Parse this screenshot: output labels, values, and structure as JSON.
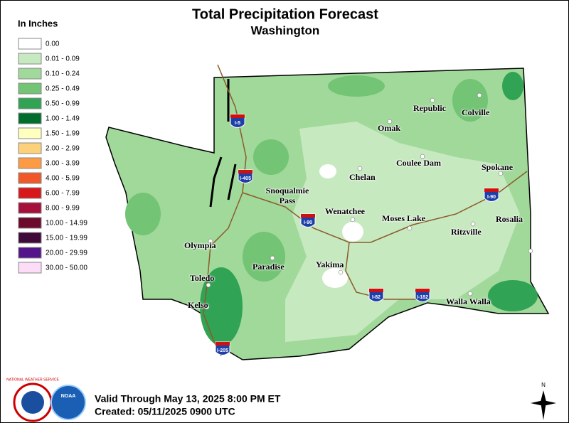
{
  "header": {
    "title": "Total Precipitation Forecast",
    "subtitle": "Washington"
  },
  "legend": {
    "title": "In Inches",
    "items": [
      {
        "label": "0.00",
        "color": "#ffffff"
      },
      {
        "label": "0.01 - 0.09",
        "color": "#c7e9c0"
      },
      {
        "label": "0.10 - 0.24",
        "color": "#a1d99b"
      },
      {
        "label": "0.25 - 0.49",
        "color": "#74c476"
      },
      {
        "label": "0.50 - 0.99",
        "color": "#31a354"
      },
      {
        "label": "1.00 - 1.49",
        "color": "#006d2c"
      },
      {
        "label": "1.50 - 1.99",
        "color": "#ffffc0"
      },
      {
        "label": "2.00 - 2.99",
        "color": "#fdd07a"
      },
      {
        "label": "3.00 - 3.99",
        "color": "#fd9a44"
      },
      {
        "label": "4.00 - 5.99",
        "color": "#f0582a"
      },
      {
        "label": "6.00 - 7.99",
        "color": "#d7191c"
      },
      {
        "label": "8.00 - 9.99",
        "color": "#a50f3a"
      },
      {
        "label": "10.00 - 14.99",
        "color": "#6b0a2a"
      },
      {
        "label": "15.00 - 19.99",
        "color": "#3f0a3a"
      },
      {
        "label": "20.00 - 29.99",
        "color": "#54158a"
      },
      {
        "label": "30.00 - 50.00",
        "color": "#fcdcf7"
      }
    ]
  },
  "cities": [
    "Republic",
    "Colville",
    "Omak",
    "Chelan",
    "Coulee Dam",
    "Spokane",
    "Snoqualmie Pass",
    "Wenatchee",
    "Moses Lake",
    "Ritzville",
    "Rosalia",
    "Olympia",
    "Paradise",
    "Yakima",
    "Toledo",
    "Kelso",
    "Walla Walla"
  ],
  "highways": [
    "I-5",
    "I-405",
    "I-90",
    "I-90",
    "I-82",
    "I-182",
    "I-205"
  ],
  "footer": {
    "valid": "Valid Through May 13, 2025 8:00 PM ET",
    "created": "Created: 05/11/2025 0900 UTC"
  },
  "logos": {
    "nws": "NATIONAL WEATHER SERVICE",
    "noaa": "NOAA"
  },
  "compass": "N"
}
